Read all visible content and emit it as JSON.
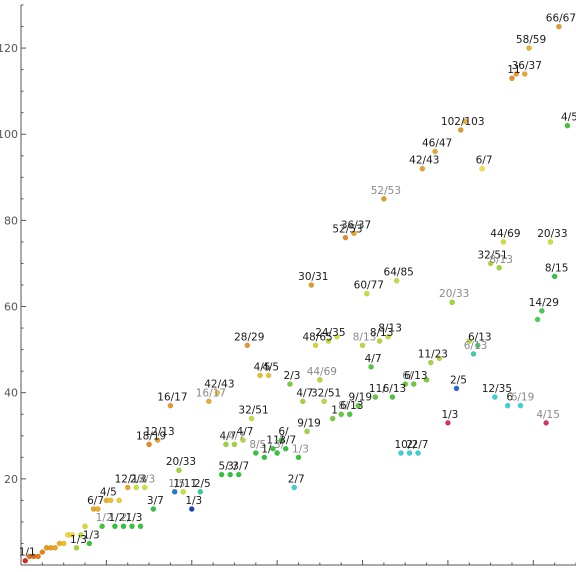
{
  "chart_data": {
    "type": "scatter",
    "title": "",
    "xlabel": "",
    "ylabel": "",
    "xlim": [
      0,
      130
    ],
    "ylim": [
      0,
      130
    ],
    "xticks": [
      20,
      40,
      60,
      80,
      100,
      120
    ],
    "yticks": [
      20,
      40,
      60,
      80,
      100,
      120
    ],
    "grid": false,
    "points": [
      {
        "x": 1,
        "y": 1,
        "label": "1/1",
        "color": "#d62a12"
      },
      {
        "x": 2,
        "y": 2,
        "label": "",
        "color": "#e0701a"
      },
      {
        "x": 3,
        "y": 2,
        "label": "",
        "color": "#e0741a"
      },
      {
        "x": 4,
        "y": 2,
        "label": "",
        "color": "#e27a1c"
      },
      {
        "x": 5,
        "y": 3,
        "label": "",
        "color": "#e4851c"
      },
      {
        "x": 6,
        "y": 4,
        "label": "",
        "color": "#e8981e"
      },
      {
        "x": 7,
        "y": 4,
        "label": "",
        "color": "#eaa020"
      },
      {
        "x": 8,
        "y": 4,
        "label": "",
        "color": "#eca822"
      },
      {
        "x": 9,
        "y": 5,
        "label": "",
        "color": "#eeb023"
      },
      {
        "x": 10,
        "y": 5,
        "label": "",
        "color": "#f0c025"
      },
      {
        "x": 11,
        "y": 7,
        "label": "",
        "color": "#f3d22a"
      },
      {
        "x": 12,
        "y": 7,
        "label": "",
        "color": "#f5dc30"
      },
      {
        "x": 13,
        "y": 4,
        "label": "1/3",
        "color": "#a7d62a"
      },
      {
        "x": 14,
        "y": 7,
        "label": "",
        "color": "#c7dc2c"
      },
      {
        "x": 15,
        "y": 9,
        "label": "",
        "color": "#dcd82d"
      },
      {
        "x": 16,
        "y": 5,
        "label": "1/3",
        "color": "#31c52e"
      },
      {
        "x": 17,
        "y": 13,
        "label": "6/7",
        "color": "#e8a424"
      },
      {
        "x": 18,
        "y": 13,
        "label": "",
        "color": "#e8b024"
      },
      {
        "x": 19,
        "y": 9,
        "label": "1/2",
        "color": "#3ec83a"
      },
      {
        "x": 20,
        "y": 15,
        "label": "4/5",
        "color": "#e6b030"
      },
      {
        "x": 21,
        "y": 15,
        "label": "",
        "color": "#eac030"
      },
      {
        "x": 22,
        "y": 9,
        "label": "1/2",
        "color": "#32c436"
      },
      {
        "x": 23,
        "y": 15,
        "label": "",
        "color": "#f0cc2c"
      },
      {
        "x": 24,
        "y": 9,
        "label": "2/",
        "color": "#2ec43a"
      },
      {
        "x": 25,
        "y": 18,
        "label": "12/13",
        "color": "#e8a428"
      },
      {
        "x": 26,
        "y": 9,
        "label": "1/3",
        "color": "#33c33c"
      },
      {
        "x": 27,
        "y": 18,
        "label": "2/3",
        "color": "#c8e13a"
      },
      {
        "x": 28,
        "y": 9,
        "label": "",
        "color": "#3ac43e"
      },
      {
        "x": 29,
        "y": 18,
        "label": "2/3",
        "color": "#d4e03c"
      },
      {
        "x": 30,
        "y": 28,
        "label": "18/19",
        "color": "#e38a24"
      },
      {
        "x": 31,
        "y": 13,
        "label": "3/7",
        "color": "#36c43e"
      },
      {
        "x": 32,
        "y": 29,
        "label": "12/13",
        "color": "#e6a229"
      },
      {
        "x": 35,
        "y": 37,
        "label": "16/17",
        "color": "#e8992a"
      },
      {
        "x": 36,
        "y": 17,
        "label": "1/5",
        "color": "#1f7ac4"
      },
      {
        "x": 37,
        "y": 22,
        "label": "20/33",
        "color": "#a5d43a"
      },
      {
        "x": 38,
        "y": 17,
        "label": "1/11",
        "color": "#c3e23b"
      },
      {
        "x": 40,
        "y": 13,
        "label": "1/3",
        "color": "#1c44b8"
      },
      {
        "x": 42,
        "y": 17,
        "label": "2/5",
        "color": "#2ed28a"
      },
      {
        "x": 44,
        "y": 38,
        "label": "16/17",
        "color": "#e6b02c"
      },
      {
        "x": 46,
        "y": 40,
        "label": "42/43",
        "color": "#eec230"
      },
      {
        "x": 47,
        "y": 21,
        "label": "5/",
        "color": "#2ec33c"
      },
      {
        "x": 48,
        "y": 28,
        "label": "4/7",
        "color": "#9ed43a"
      },
      {
        "x": 49,
        "y": 21,
        "label": "3/",
        "color": "#2fc33b"
      },
      {
        "x": 50,
        "y": 28,
        "label": "4/7",
        "color": "#a4d43a"
      },
      {
        "x": 51,
        "y": 21,
        "label": "3/7",
        "color": "#2ec33c"
      },
      {
        "x": 52,
        "y": 29,
        "label": "4/7",
        "color": "#b6d83a"
      },
      {
        "x": 53,
        "y": 51,
        "label": "28/29",
        "color": "#e09a2a"
      },
      {
        "x": 54,
        "y": 34,
        "label": "32/51",
        "color": "#c2dc3c"
      },
      {
        "x": 55,
        "y": 26,
        "label": "8/5",
        "color": "#34c23c"
      },
      {
        "x": 56,
        "y": 44,
        "label": "4/5",
        "color": "#e0c02e"
      },
      {
        "x": 57,
        "y": 25,
        "label": "1/",
        "color": "#35c33d"
      },
      {
        "x": 58,
        "y": 44,
        "label": "4/5",
        "color": "#e6c436"
      },
      {
        "x": 59,
        "y": 27,
        "label": "11/",
        "color": "#3cc43e"
      },
      {
        "x": 60,
        "y": 26,
        "label": "3/",
        "color": "#34c33c"
      },
      {
        "x": 61,
        "y": 29,
        "label": "6/",
        "color": "#3ec640"
      },
      {
        "x": 62,
        "y": 27,
        "label": "3/7",
        "color": "#32c33c"
      },
      {
        "x": 63,
        "y": 42,
        "label": "2/3",
        "color": "#74cc38"
      },
      {
        "x": 64,
        "y": 18,
        "label": "2/7",
        "color": "#38d1d4"
      },
      {
        "x": 65,
        "y": 25,
        "label": "1/3",
        "color": "#32c43c"
      },
      {
        "x": 66,
        "y": 38,
        "label": "4/7",
        "color": "#a4d43a"
      },
      {
        "x": 67,
        "y": 31,
        "label": "9/19",
        "color": "#9fd63c"
      },
      {
        "x": 68,
        "y": 65,
        "label": "30/31",
        "color": "#e39a2a"
      },
      {
        "x": 69,
        "y": 51,
        "label": "48/65",
        "color": "#d8d42e"
      },
      {
        "x": 70,
        "y": 43,
        "label": "44/69",
        "color": "#b6d83a"
      },
      {
        "x": 71,
        "y": 38,
        "label": "32/51",
        "color": "#b7d63c"
      },
      {
        "x": 72,
        "y": 52,
        "label": "24/35",
        "color": "#c8dc3a"
      },
      {
        "x": 73,
        "y": 34,
        "label": "1",
        "color": "#78ca3a"
      },
      {
        "x": 74,
        "y": 53,
        "label": "",
        "color": "#cee03a"
      },
      {
        "x": 75,
        "y": 35,
        "label": "8/",
        "color": "#6ac63a"
      },
      {
        "x": 76,
        "y": 76,
        "label": "52/53",
        "color": "#e38b28"
      },
      {
        "x": 77,
        "y": 35,
        "label": "6/13",
        "color": "#4cc63c"
      },
      {
        "x": 78,
        "y": 77,
        "label": "36/37",
        "color": "#e6a22a"
      },
      {
        "x": 79,
        "y": 37,
        "label": "9/19",
        "color": "#66c73a"
      },
      {
        "x": 80,
        "y": 51,
        "label": "8/13",
        "color": "#bed93a"
      },
      {
        "x": 81,
        "y": 63,
        "label": "60/77",
        "color": "#c8dc3a"
      },
      {
        "x": 82,
        "y": 46,
        "label": "4/7",
        "color": "#52c63c"
      },
      {
        "x": 83,
        "y": 39,
        "label": "11/",
        "color": "#62c83c"
      },
      {
        "x": 84,
        "y": 52,
        "label": "8/13",
        "color": "#b8d63a"
      },
      {
        "x": 85,
        "y": 85,
        "label": "52/53",
        "color": "#e09a2a"
      },
      {
        "x": 86,
        "y": 53,
        "label": "8/13",
        "color": "#c2dc3c"
      },
      {
        "x": 87,
        "y": 39,
        "label": "6/13",
        "color": "#4cc43c"
      },
      {
        "x": 88,
        "y": 66,
        "label": "64/85",
        "color": "#c6da3a"
      },
      {
        "x": 89,
        "y": 26,
        "label": "10/",
        "color": "#3ad2d4"
      },
      {
        "x": 90,
        "y": 42,
        "label": "6/",
        "color": "#5dc83c"
      },
      {
        "x": 91,
        "y": 26,
        "label": "2/",
        "color": "#3ad2d4"
      },
      {
        "x": 92,
        "y": 42,
        "label": "6/13",
        "color": "#6ec93c"
      },
      {
        "x": 93,
        "y": 26,
        "label": "2/7",
        "color": "#3ad2d4"
      },
      {
        "x": 94,
        "y": 92,
        "label": "42/43",
        "color": "#e3a02a"
      },
      {
        "x": 95,
        "y": 43,
        "label": "",
        "color": "#7ccc3a"
      },
      {
        "x": 96,
        "y": 47,
        "label": "11/23",
        "color": "#a7d63a"
      },
      {
        "x": 97,
        "y": 96,
        "label": "46/47",
        "color": "#e6a82c"
      },
      {
        "x": 98,
        "y": 48,
        "label": "",
        "color": "#b6d83a"
      },
      {
        "x": 100,
        "y": 33,
        "label": "1/3",
        "color": "#dc2c6a"
      },
      {
        "x": 101,
        "y": 61,
        "label": "20/33",
        "color": "#a0d63a"
      },
      {
        "x": 102,
        "y": 41,
        "label": "2/5",
        "color": "#2a68d0"
      },
      {
        "x": 103,
        "y": 101,
        "label": "102/103",
        "color": "#e0982a"
      },
      {
        "x": 104,
        "y": 103,
        "label": "",
        "color": "#e8b02c"
      },
      {
        "x": 105,
        "y": 52,
        "label": "",
        "color": "#c2da3c"
      },
      {
        "x": 106,
        "y": 49,
        "label": "6/13",
        "color": "#38cfa8"
      },
      {
        "x": 107,
        "y": 51,
        "label": "6/13",
        "color": "#40c96c"
      },
      {
        "x": 108,
        "y": 92,
        "label": "6/7",
        "color": "#f0e040"
      },
      {
        "x": 110,
        "y": 70,
        "label": "32/51",
        "color": "#aad83a"
      },
      {
        "x": 111,
        "y": 39,
        "label": "12/35",
        "color": "#3ad2d8"
      },
      {
        "x": 112,
        "y": 69,
        "label": "8/13",
        "color": "#9ed63a"
      },
      {
        "x": 113,
        "y": 75,
        "label": "44/69",
        "color": "#d0dc38"
      },
      {
        "x": 114,
        "y": 37,
        "label": "6",
        "color": "#3ad4d8"
      },
      {
        "x": 115,
        "y": 113,
        "label": "11",
        "color": "#e39028"
      },
      {
        "x": 116,
        "y": 114,
        "label": "",
        "color": "#e89a2a"
      },
      {
        "x": 117,
        "y": 37,
        "label": "6/19",
        "color": "#3ad4da"
      },
      {
        "x": 118,
        "y": 114,
        "label": "36/37",
        "color": "#e8a82c"
      },
      {
        "x": 119,
        "y": 120,
        "label": "58/59",
        "color": "#e8b02c"
      },
      {
        "x": 121,
        "y": 57,
        "label": "",
        "color": "#4cd05a"
      },
      {
        "x": 122,
        "y": 59,
        "label": "14/29",
        "color": "#40cc4e"
      },
      {
        "x": 123,
        "y": 33,
        "label": "4/15",
        "color": "#dc2c6a"
      },
      {
        "x": 124,
        "y": 75,
        "label": "20/33",
        "color": "#c8e03a"
      },
      {
        "x": 125,
        "y": 67,
        "label": "8/15",
        "color": "#32c43c"
      },
      {
        "x": 126,
        "y": 125,
        "label": "66/67",
        "color": "#e39a2a"
      },
      {
        "x": 128,
        "y": 102,
        "label": "4/5",
        "color": "#3ec83c"
      }
    ]
  }
}
